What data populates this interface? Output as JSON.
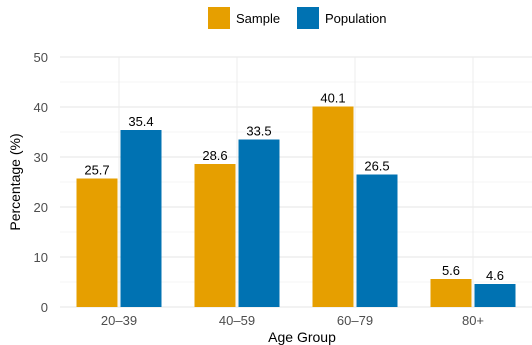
{
  "chart_data": {
    "type": "bar",
    "title": "",
    "xlabel": "Age Group",
    "ylabel": "Percentage (%)",
    "categories": [
      "20–39",
      "40–59",
      "60–79",
      "80+"
    ],
    "series": [
      {
        "name": "Sample",
        "values": [
          25.7,
          28.6,
          40.1,
          5.6
        ],
        "color": "#E69F00"
      },
      {
        "name": "Population",
        "values": [
          35.4,
          33.5,
          26.5,
          4.6
        ],
        "color": "#0072B2"
      }
    ],
    "ylim": [
      0,
      50
    ],
    "yticks": [
      "0",
      "10",
      "20",
      "30",
      "40",
      "50"
    ],
    "data_labels": {
      "Sample": [
        "25.7",
        "28.6",
        "40.1",
        "5.6"
      ],
      "Population": [
        "35.4",
        "33.5",
        "26.5",
        "4.6"
      ]
    },
    "grid": true,
    "legend_position": "top"
  }
}
